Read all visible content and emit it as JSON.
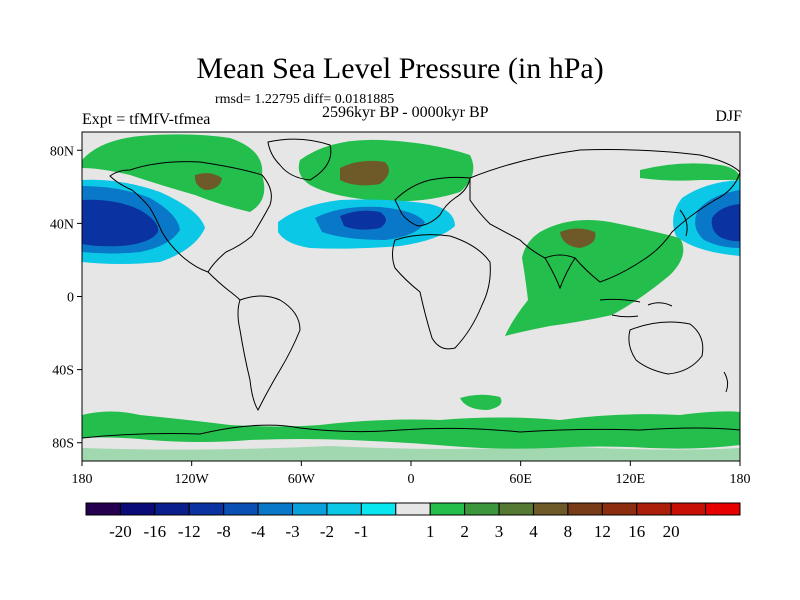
{
  "map": {
    "title": "Mean Sea Level Pressure (in hPa)",
    "stats": "rmsd= 1.22795 diff= 0.0181885",
    "experiment": "Expt = tfMfV-tfmea",
    "period": "2596kyr BP - 0000kyr BP",
    "season": "DJF",
    "lat_ticks": [
      {
        "label": "80N",
        "value": 80
      },
      {
        "label": "40N",
        "value": 40
      },
      {
        "label": "0",
        "value": 0
      },
      {
        "label": "40S",
        "value": -40
      },
      {
        "label": "80S",
        "value": -80
      }
    ],
    "lon_ticks": [
      {
        "label": "180",
        "value": -180
      },
      {
        "label": "120W",
        "value": -120
      },
      {
        "label": "60W",
        "value": -60
      },
      {
        "label": "0",
        "value": 0
      },
      {
        "label": "60E",
        "value": 60
      },
      {
        "label": "120E",
        "value": 120
      },
      {
        "label": "180",
        "value": 180
      }
    ]
  },
  "colorbar": {
    "colors": [
      "#24004f",
      "#0a0a78",
      "#0a1e8c",
      "#0a32a0",
      "#0a50b4",
      "#0a78c8",
      "#0aa0dc",
      "#0ac8e6",
      "#0ae6f0",
      "#e6e6e6",
      "#23be4b",
      "#3c963c",
      "#557832",
      "#6e5a28",
      "#783c19",
      "#8c2d0f",
      "#aa1e0a",
      "#c80f05",
      "#e60000"
    ],
    "labels": [
      "-20",
      "-16",
      "-12",
      "-8",
      "-4",
      "-3",
      "-2",
      "-1",
      "1",
      "2",
      "3",
      "4",
      "8",
      "12",
      "16",
      "20"
    ],
    "label_after_box": [
      1,
      2,
      3,
      4,
      5,
      6,
      7,
      8,
      10,
      11,
      12,
      13,
      14,
      15,
      16,
      17
    ]
  },
  "fields": {
    "background_color": "#e6e6e6",
    "positive_color": "#23be4b",
    "strong_positive_color": "#6e5a28",
    "negative_light_color": "#0ac8e6",
    "negative_mid_color": "#0a78c8",
    "negative_strong_color": "#0a32a0"
  }
}
